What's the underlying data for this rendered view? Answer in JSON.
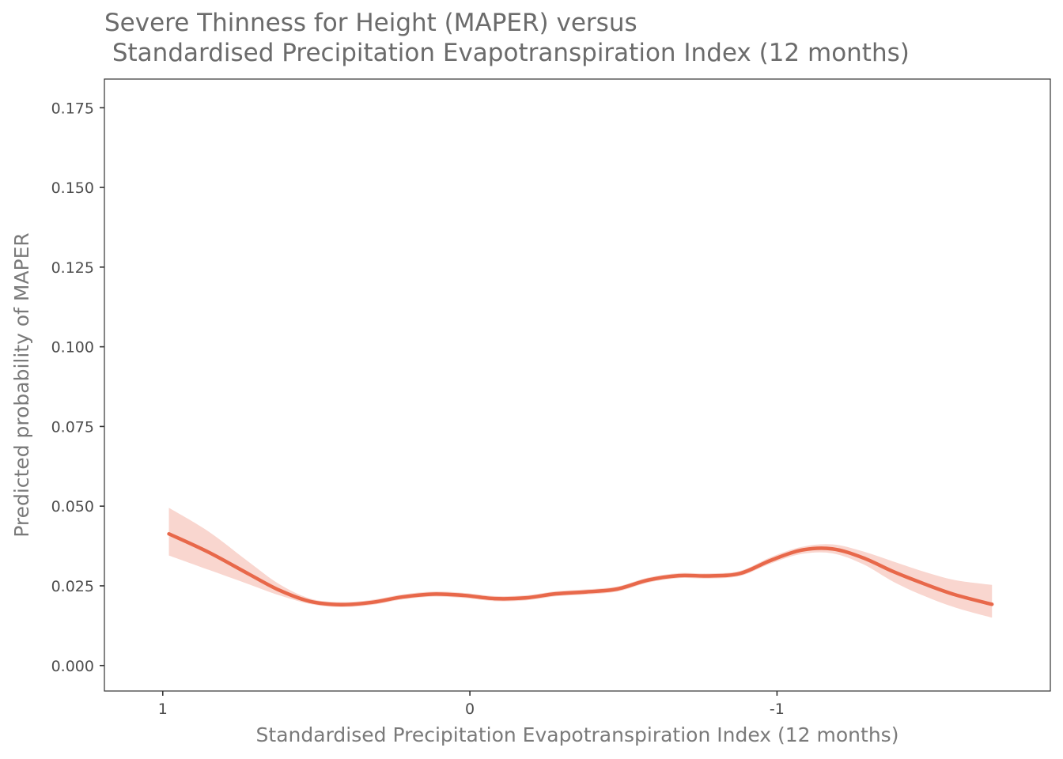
{
  "chart_data": {
    "type": "line",
    "title_lines": [
      "Severe Thinness for Height (MAPER) versus",
      " Standardised Precipitation Evapotranspiration Index (12 months)"
    ],
    "xlabel": "Standardised Precipitation Evapotranspiration Index (12 months)",
    "ylabel": "Predicted probability of MAPER",
    "x_reversed": true,
    "xlim": [
      1.19,
      -1.89
    ],
    "ylim": [
      -0.008,
      0.184
    ],
    "x_ticks": [
      {
        "value": 1,
        "label": "1"
      },
      {
        "value": 0,
        "label": "0"
      },
      {
        "value": -1,
        "label": "-1"
      }
    ],
    "y_ticks": [
      {
        "value": 0.0,
        "label": "0.000"
      },
      {
        "value": 0.025,
        "label": "0.025"
      },
      {
        "value": 0.05,
        "label": "0.050"
      },
      {
        "value": 0.075,
        "label": "0.075"
      },
      {
        "value": 0.1,
        "label": "0.100"
      },
      {
        "value": 0.125,
        "label": "0.125"
      },
      {
        "value": 0.15,
        "label": "0.150"
      },
      {
        "value": 0.175,
        "label": "0.175"
      }
    ],
    "grid": false,
    "colors": {
      "line": "#e8684a",
      "ribbon": "#f9d6cf",
      "axis": "#333333",
      "title": "#6b6b6b"
    },
    "series": [
      {
        "x": [
          0.98,
          0.85,
          0.72,
          0.62,
          0.52,
          0.42,
          0.32,
          0.22,
          0.12,
          0.02,
          -0.08,
          -0.18,
          -0.28,
          -0.38,
          -0.48,
          -0.58,
          -0.68,
          -0.78,
          -0.88,
          -0.98,
          -1.08,
          -1.18,
          -1.28,
          -1.38,
          -1.48,
          -1.58,
          -1.7
        ],
        "y": [
          0.0413,
          0.0355,
          0.0287,
          0.0236,
          0.0201,
          0.0191,
          0.0198,
          0.0215,
          0.0224,
          0.022,
          0.021,
          0.0212,
          0.0225,
          0.0231,
          0.024,
          0.0268,
          0.0282,
          0.0281,
          0.0289,
          0.033,
          0.0362,
          0.0366,
          0.0338,
          0.0294,
          0.0256,
          0.0222,
          0.0192
        ],
        "lower": [
          0.0345,
          0.03,
          0.0255,
          0.022,
          0.0193,
          0.0183,
          0.019,
          0.0207,
          0.0216,
          0.0212,
          0.0202,
          0.0204,
          0.0217,
          0.0223,
          0.0232,
          0.026,
          0.0274,
          0.0273,
          0.0281,
          0.032,
          0.035,
          0.0352,
          0.0318,
          0.0262,
          0.0218,
          0.0182,
          0.015
        ],
        "upper": [
          0.0495,
          0.042,
          0.0325,
          0.0255,
          0.021,
          0.0199,
          0.0206,
          0.0223,
          0.0232,
          0.0228,
          0.0218,
          0.022,
          0.0233,
          0.0239,
          0.0248,
          0.0276,
          0.029,
          0.0289,
          0.0297,
          0.034,
          0.0372,
          0.038,
          0.0358,
          0.0326,
          0.0294,
          0.0268,
          0.0253
        ]
      }
    ]
  }
}
